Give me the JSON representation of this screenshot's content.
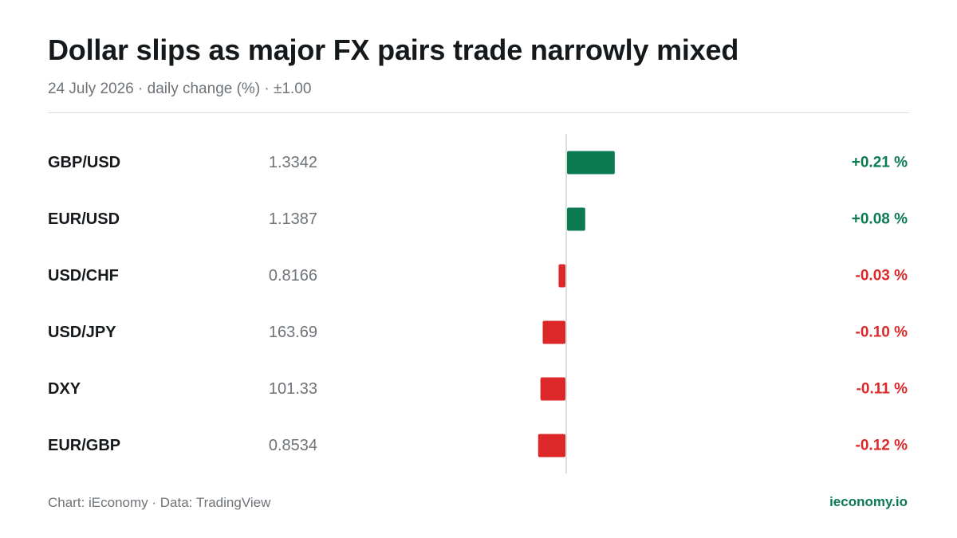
{
  "header": {
    "title": "Dollar slips as major FX pairs trade narrowly mixed",
    "subtitle": "24 July 2026 · daily change (%) · ±1.00"
  },
  "footer": {
    "source": "Chart: iEconomy · Data: TradingView",
    "brand": "ieconomy.io"
  },
  "colors": {
    "positive": "#0b7a51",
    "negative": "#dc2828",
    "text": "#15191c",
    "muted": "#6e7378",
    "axis": "#dcdee0"
  },
  "chart_data": {
    "type": "bar",
    "orientation": "horizontal",
    "unit": "%",
    "xlim": [
      -1.0,
      1.0
    ],
    "grid": false,
    "legend": "none",
    "categories": [
      "GBP/USD",
      "EUR/USD",
      "USD/CHF",
      "USD/JPY",
      "DXY",
      "EUR/GBP"
    ],
    "prices": [
      "1.3342",
      "1.1387",
      "0.8166",
      "163.69",
      "101.33",
      "0.8534"
    ],
    "values": [
      0.21,
      0.08,
      -0.03,
      -0.1,
      -0.11,
      -0.12
    ],
    "value_labels": [
      "+0.21 %",
      "+0.08 %",
      "-0.03 %",
      "-0.10 %",
      "-0.11 %",
      "-0.12 %"
    ]
  }
}
